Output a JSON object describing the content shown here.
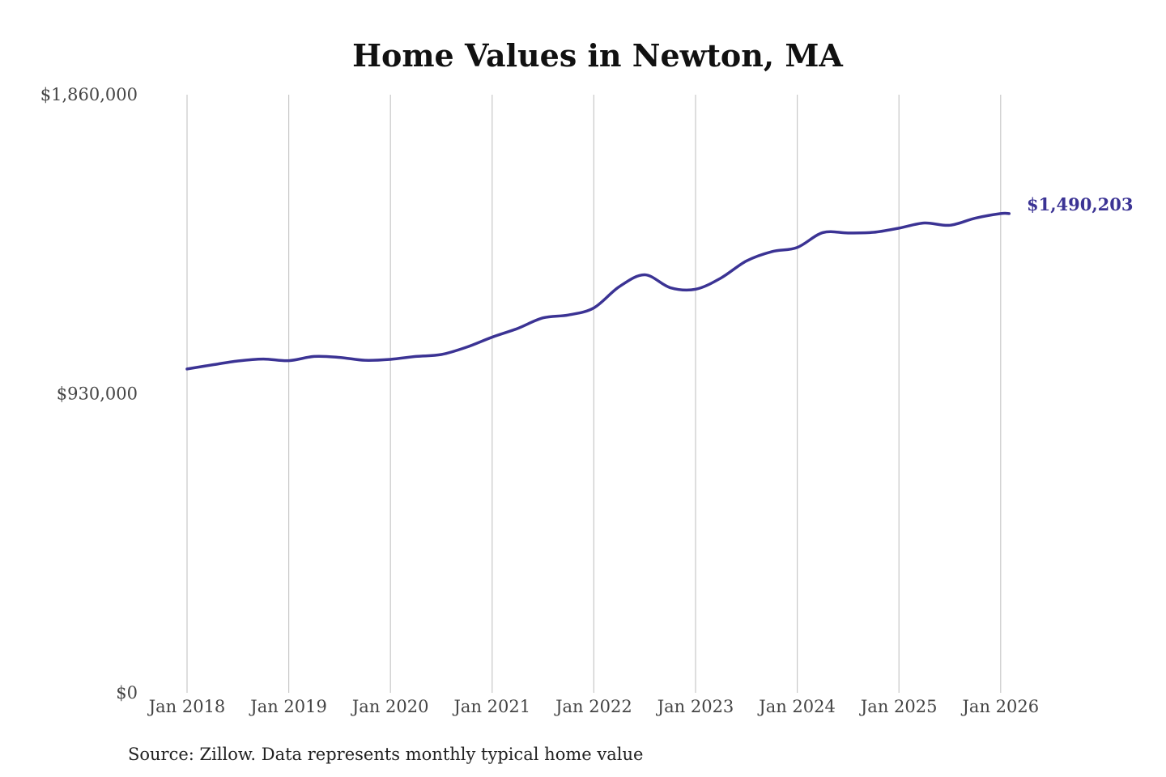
{
  "chart_data": {
    "type": "line",
    "title": "Home Values in Newton, MA",
    "xlabel": "",
    "ylabel": "",
    "x_ticks": [
      "Jan 2018",
      "Jan 2019",
      "Jan 2020",
      "Jan 2021",
      "Jan 2022",
      "Jan 2023",
      "Jan 2024",
      "Jan 2025",
      "Jan 2026"
    ],
    "y_ticks": [
      "$0",
      "$930,000",
      "$1,860,000"
    ],
    "ylim": [
      0,
      1860000
    ],
    "xlim": [
      "2018-01",
      "2026-02"
    ],
    "grid": "vertical",
    "end_label": "$1,490,203",
    "source": "Source: Zillow. Data represents monthly typical home value",
    "color": "#3b3394",
    "series": [
      {
        "values": [
          [
            "2018-01",
            1007000
          ],
          [
            "2018-04",
            1020000
          ],
          [
            "2018-07",
            1032000
          ],
          [
            "2018-10",
            1038000
          ],
          [
            "2019-01",
            1033000
          ],
          [
            "2019-04",
            1046000
          ],
          [
            "2019-07",
            1043000
          ],
          [
            "2019-10",
            1034000
          ],
          [
            "2020-01",
            1037000
          ],
          [
            "2020-04",
            1046000
          ],
          [
            "2020-07",
            1052000
          ],
          [
            "2020-10",
            1075000
          ],
          [
            "2021-01",
            1106000
          ],
          [
            "2021-04",
            1133000
          ],
          [
            "2021-07",
            1166000
          ],
          [
            "2021-10",
            1175000
          ],
          [
            "2022-01",
            1197000
          ],
          [
            "2022-04",
            1263000
          ],
          [
            "2022-07",
            1300000
          ],
          [
            "2022-10",
            1260000
          ],
          [
            "2023-01",
            1255000
          ],
          [
            "2023-04",
            1290000
          ],
          [
            "2023-07",
            1343000
          ],
          [
            "2023-10",
            1372000
          ],
          [
            "2024-01",
            1385000
          ],
          [
            "2024-04",
            1431000
          ],
          [
            "2024-07",
            1430000
          ],
          [
            "2024-10",
            1432000
          ],
          [
            "2025-01",
            1445000
          ],
          [
            "2025-04",
            1461000
          ],
          [
            "2025-07",
            1454000
          ],
          [
            "2025-10",
            1476000
          ],
          [
            "2026-01",
            1490203
          ],
          [
            "2026-02",
            1490203
          ]
        ]
      }
    ]
  }
}
